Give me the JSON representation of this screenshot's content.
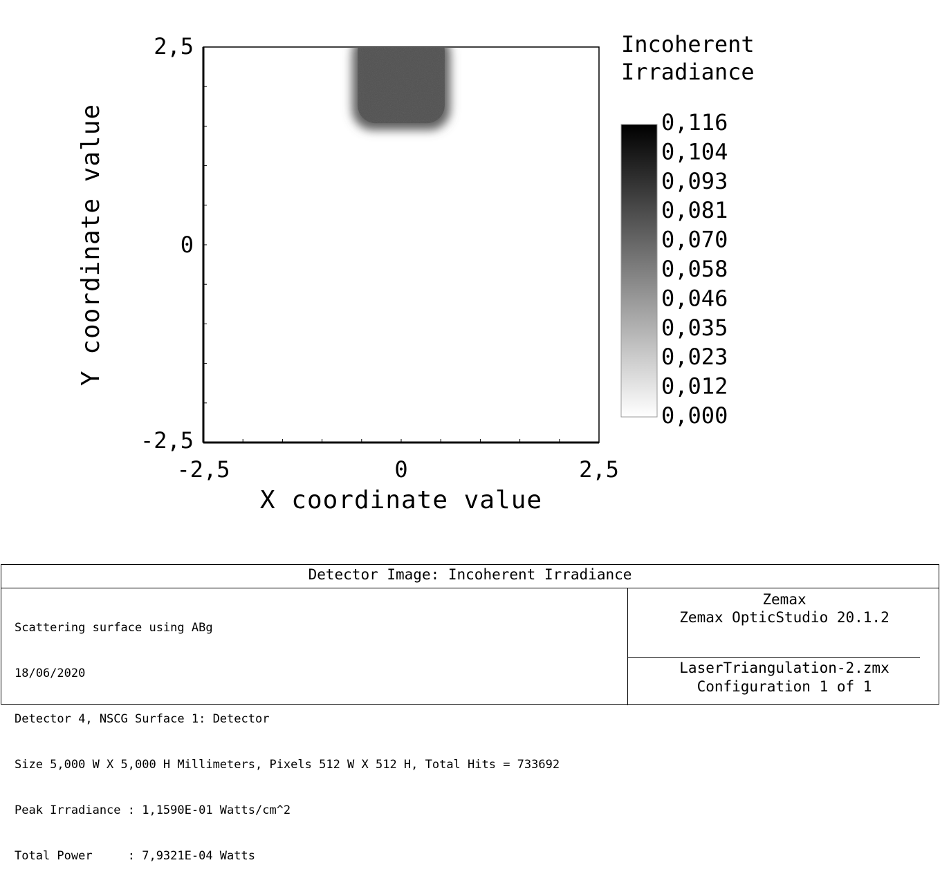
{
  "chart_data": {
    "type": "heatmap",
    "title": "Incoherent Irradiance",
    "title_lines": [
      "Incoherent",
      "Irradiance"
    ],
    "xlabel": "X coordinate value",
    "ylabel": "Y coordinate value",
    "xlim": [
      -2.5,
      2.5
    ],
    "ylim": [
      -2.5,
      2.5
    ],
    "x_ticks": [
      "-2,5",
      "0",
      "2,5"
    ],
    "y_ticks": [
      "2,5",
      "0",
      "-2,5"
    ],
    "colorscale": "grayscale",
    "color_min": "#ffffff",
    "color_max": "#000000",
    "colorbar_range": [
      0.0,
      0.116
    ],
    "colorbar_ticks": [
      "0,116",
      "0,104",
      "0,093",
      "0,081",
      "0,070",
      "0,058",
      "0,046",
      "0,035",
      "0,023",
      "0,012",
      "0,000"
    ],
    "spot": {
      "x_range": [
        -0.62,
        0.62
      ],
      "y_range": [
        1.45,
        2.5
      ],
      "approx_value": 0.072
    }
  },
  "info": {
    "header": "Detector Image: Incoherent Irradiance",
    "lines": [
      "Scattering surface using ABg",
      "18/06/2020",
      "Detector 4, NSCG Surface 1: Detector",
      "Size 5,000 W X 5,000 H Millimeters, Pixels 512 W X 512 H, Total Hits = 733692",
      "Peak Irradiance : 1,1590E-01 Watts/cm^2",
      "Total Power     : 7,9321E-04 Watts"
    ],
    "company": "Zemax",
    "product": "Zemax OpticStudio 20.1.2",
    "file": "LaserTriangulation-2.zmx",
    "configuration": "Configuration 1 of 1"
  }
}
